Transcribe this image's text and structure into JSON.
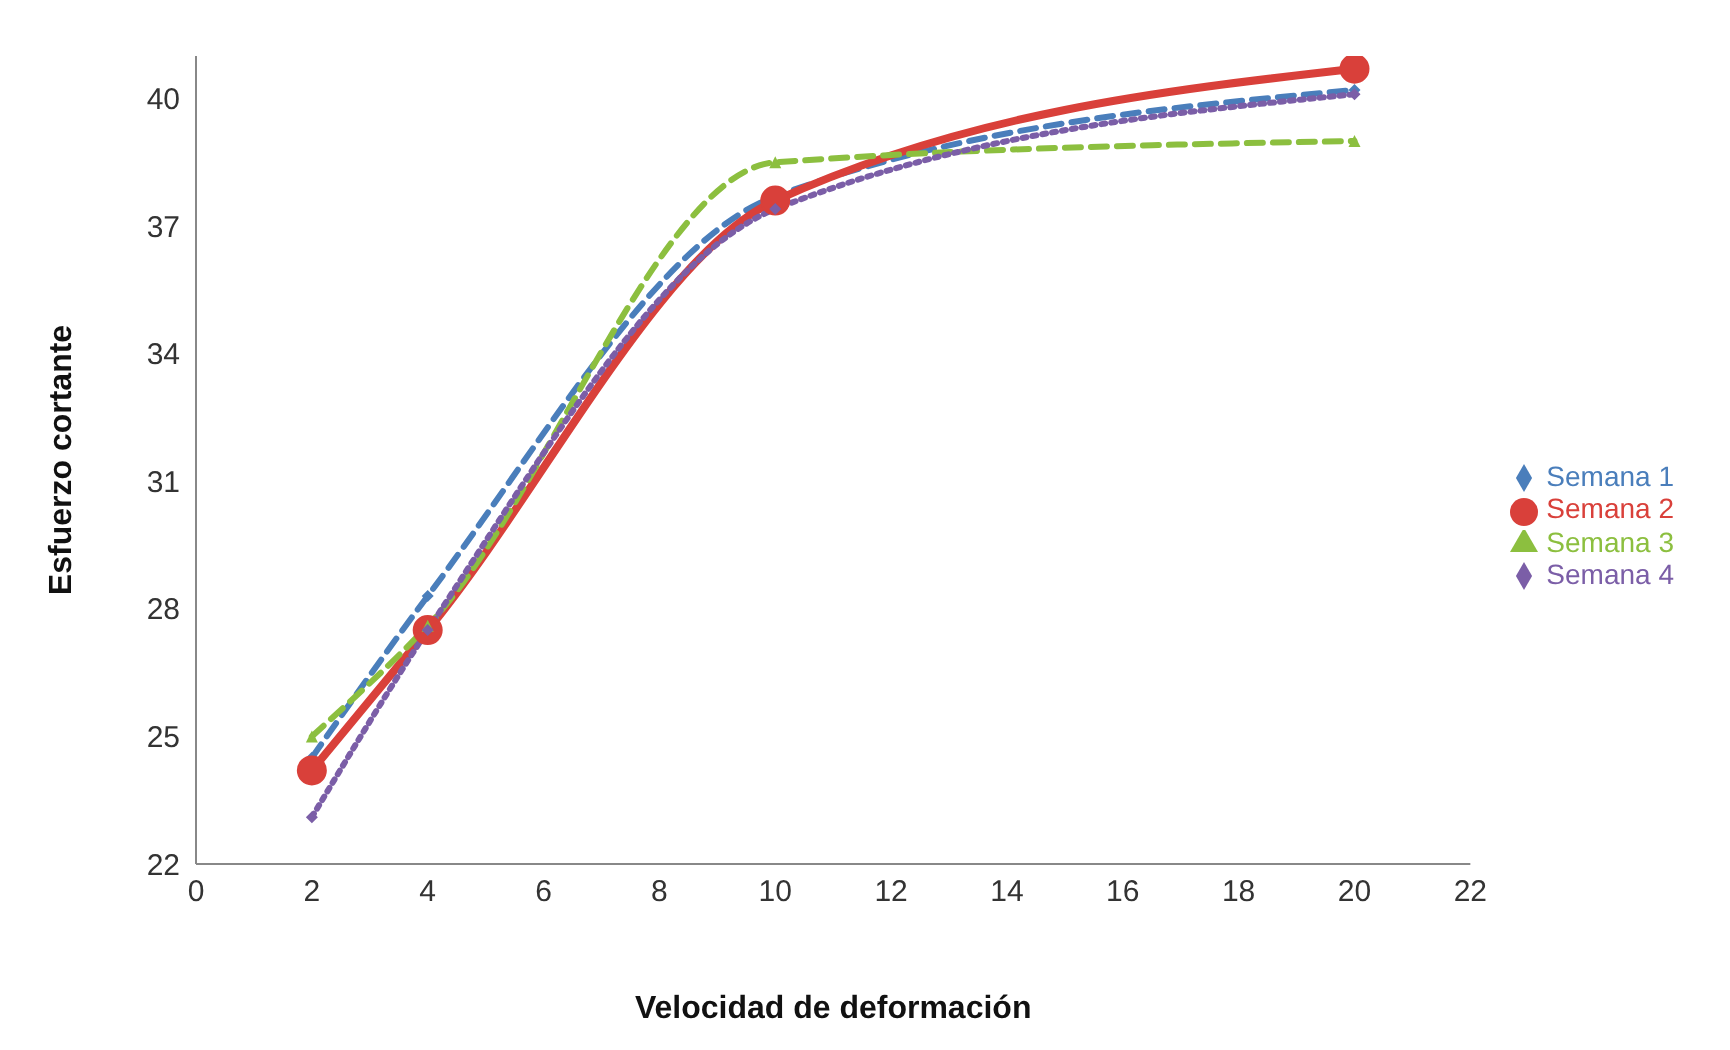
{
  "chart_data": {
    "type": "line",
    "xlabel": "Velocidad de deformación",
    "ylabel": "Esfuerzo cortante",
    "x": [
      2,
      4,
      10,
      20
    ],
    "series": [
      {
        "name": "Semana 1",
        "color": "#4a7ebb",
        "values": [
          24.5,
          28.3,
          37.7,
          40.2
        ],
        "line_style": "dashed",
        "marker": "diamond"
      },
      {
        "name": "Semana 2",
        "color": "#d9403a",
        "values": [
          24.2,
          27.5,
          37.6,
          40.7
        ],
        "line_style": "solid",
        "marker": "circle"
      },
      {
        "name": "Semana 3",
        "color": "#8cbf3f",
        "values": [
          25.0,
          27.6,
          38.5,
          39.0
        ],
        "line_style": "dashed",
        "marker": "triangle"
      },
      {
        "name": "Semana 4",
        "color": "#7b5ea7",
        "values": [
          23.1,
          27.5,
          37.4,
          40.1
        ],
        "line_style": "dotted",
        "marker": "diamond"
      }
    ],
    "xlim": [
      0,
      22
    ],
    "xticks": [
      0,
      2,
      4,
      6,
      8,
      10,
      12,
      14,
      16,
      18,
      20,
      22
    ],
    "ylim": [
      22,
      41
    ],
    "yticks": [
      22,
      25,
      28,
      31,
      34,
      37,
      40
    ],
    "grid": false,
    "legend": "right"
  }
}
